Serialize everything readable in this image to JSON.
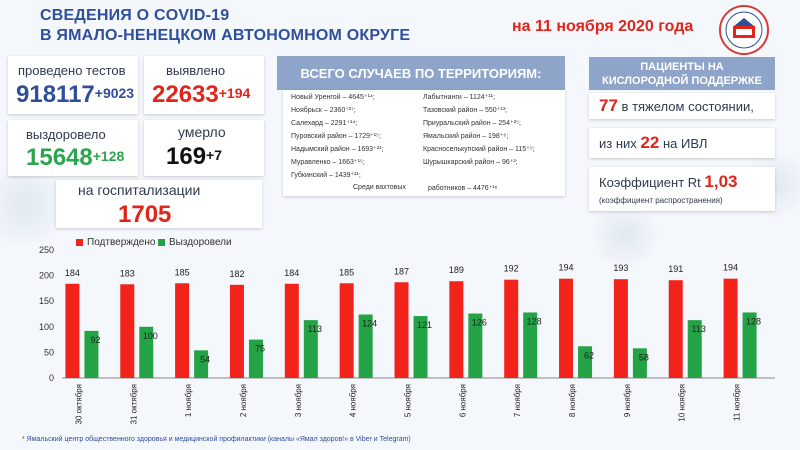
{
  "header": {
    "title_line1": "СВЕДЕНИЯ О COVID-19",
    "title_line2": "В ЯМАЛО-НЕНЕЦКОМ АВТОНОМНОМ ОКРУГЕ",
    "date": "на 11 ноября 2020 года"
  },
  "stats": {
    "tests_label": "проведено тестов",
    "tests_value": "918117",
    "tests_delta": "+9023",
    "detected_label": "выявлено",
    "detected_value": "22633",
    "detected_delta": "+194",
    "recovered_label": "выздоровело",
    "recovered_value": "15648",
    "recovered_delta": "+128",
    "died_label": "умерло",
    "died_value": "169",
    "died_delta": "+7",
    "hospital_label": "на госпитализации",
    "hospital_value": "1705"
  },
  "territories": {
    "title": "ВСЕГО СЛУЧАЕВ ПО ТЕРРИТОРИЯМ:",
    "left": [
      "Новый Уренгой – 4645⁺¹⁴;",
      "Ноябрьск – 2360⁺²⁷;",
      "Салехард – 2291⁺¹⁴;",
      "Пуровский район – 1729⁺¹⁵;",
      "Надымский район – 1693⁺²¹;",
      "Муравленко – 1663⁺¹⁵;",
      "Губкинский – 1439⁺¹¹;"
    ],
    "right": [
      "Лабытнанги – 1124⁺¹¹;",
      "Тазовский район – 550⁺¹³;",
      "Приуральский район – 254⁺²⁵;",
      "Ямальский район – 198⁺⁶;",
      "Красноселькупский район – 115⁺⁵;",
      "Шурышкарский район – 96⁺²;"
    ],
    "footer_left": "Среди вахтовых",
    "footer_right": "работников – 4476⁺¹⁶"
  },
  "oxygen": {
    "title_line1": "ПАЦИЕНТЫ НА",
    "title_line2": "КИСЛОРОДНОЙ ПОДДЕРЖКЕ",
    "severe_value": "77",
    "severe_text": "в тяжелом состоянии,",
    "ivl_prefix": "из них",
    "ivl_value": "22",
    "ivl_suffix": "на ИВЛ",
    "rt_label": "Коэффициент Rt",
    "rt_value": "1,03",
    "rt_note": "(коэффициент распространения)"
  },
  "footer": "* Ямальский центр общественного здоровья и медицинской профилактики (каналы «Ямал здоров!» в Viber и Telegram)",
  "colors": {
    "confirmed": "#f2231b",
    "recovered": "#23a345",
    "title_blue": "#2f4f9a",
    "accent_red": "#e1251b"
  },
  "chart_data": {
    "type": "bar",
    "categories": [
      "30 октября",
      "31 октября",
      "1 ноября",
      "2 ноября",
      "3 ноября",
      "4 ноября",
      "5 ноября",
      "6 ноября",
      "7 ноября",
      "8 ноября",
      "9 ноября",
      "10 ноября",
      "11 ноября"
    ],
    "series": [
      {
        "name": "Подтверждено",
        "values": [
          184,
          183,
          185,
          182,
          184,
          185,
          187,
          189,
          192,
          194,
          193,
          191,
          194
        ]
      },
      {
        "name": "Выздоровели",
        "values": [
          92,
          100,
          54,
          75,
          113,
          124,
          121,
          126,
          128,
          62,
          58,
          113,
          128
        ]
      }
    ],
    "ylim": [
      0,
      250
    ],
    "yticks": [
      0,
      50,
      100,
      150,
      200,
      250
    ],
    "grid": false,
    "legend": "top-left"
  }
}
